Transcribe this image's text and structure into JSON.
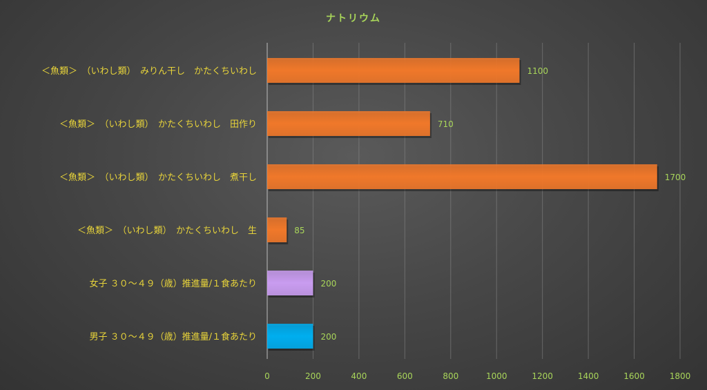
{
  "chart_data": {
    "type": "bar",
    "orientation": "horizontal",
    "title": "ナトリウム",
    "categories": [
      "＜魚類＞　（いわし類）　みりん干し　かたくちいわし",
      "＜魚類＞　（いわし類）　かたくちいわし　田作り",
      "＜魚類＞　（いわし類）　かたくちいわし　煮干し",
      "＜魚類＞　（いわし類）　かたくちいわし　生",
      "女子 ３０～４９（歳）推進量/１食あたり",
      "男子 ３０～４９（歳）推進量/１食あたり"
    ],
    "values": [
      1100,
      710,
      1700,
      85,
      200,
      200
    ],
    "data_labels": [
      "1100",
      "710",
      "1700",
      "85",
      "200",
      "200"
    ],
    "bar_colors": [
      "#f0782a",
      "#f0782a",
      "#f0782a",
      "#f0782a",
      "#c99cf0",
      "#00aeef"
    ],
    "xlim": [
      0,
      1800
    ],
    "ticks": [
      0,
      200,
      400,
      600,
      800,
      1000,
      1200,
      1400,
      1600,
      1800
    ],
    "tick_labels": [
      "0",
      "200",
      "400",
      "600",
      "800",
      "1000",
      "1200",
      "1400",
      "1600",
      "1800"
    ],
    "grid": true,
    "legend": "none",
    "title_color": "#a9d65a",
    "label_color": "#e8d43a",
    "value_color": "#a9d65a"
  }
}
